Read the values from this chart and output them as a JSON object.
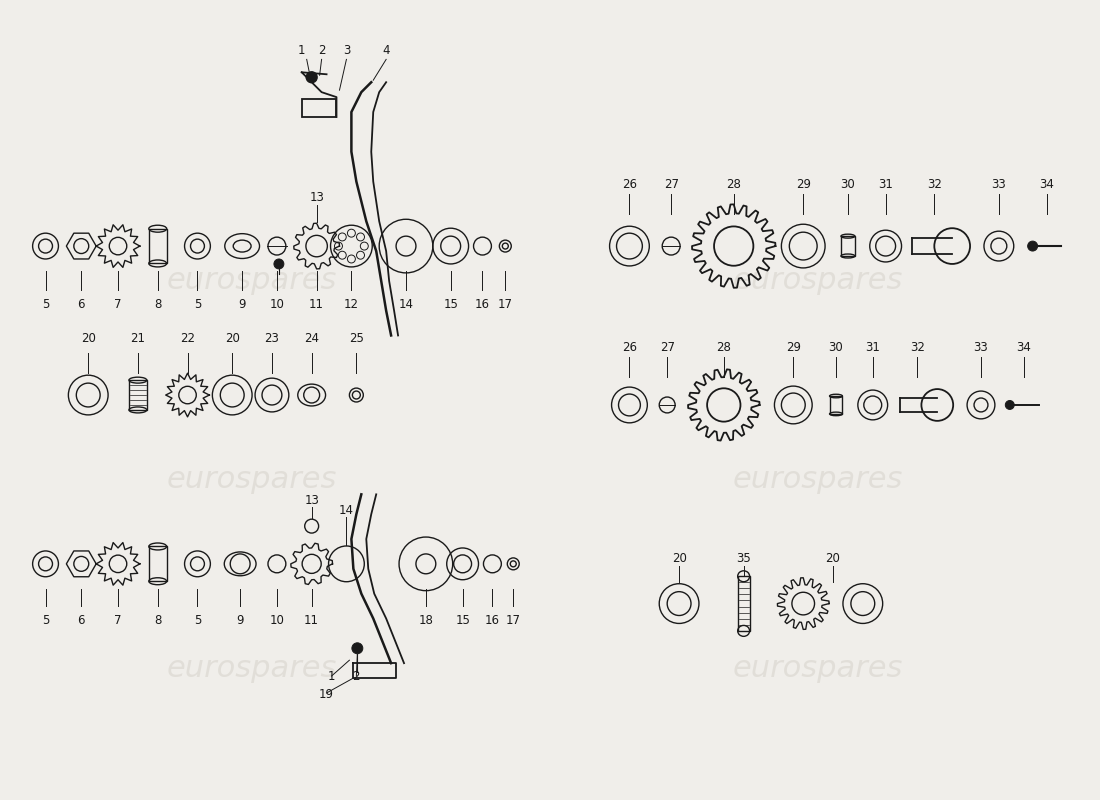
{
  "bg_color": "#f0eeea",
  "watermark_text": "eurospares",
  "watermark_color": "#d0ccc4",
  "watermark_alpha": 0.45,
  "line_color": "#1a1a1a",
  "label_fontsize": 8.5,
  "part_color": "#1a1a1a"
}
